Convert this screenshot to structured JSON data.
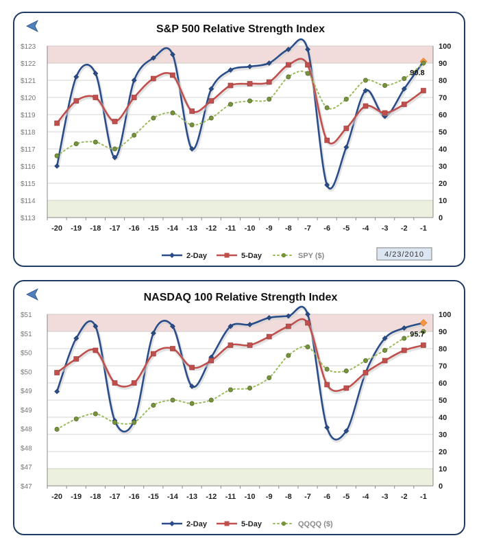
{
  "colors": {
    "two_day": "#2a4d8a",
    "five_day": "#c0504d",
    "price": "#9bbb59",
    "overbought_band": "#f2dcdb",
    "oversold_band": "#ebf1de",
    "gridline": "#c8c8c8",
    "marker_last": "#f79646",
    "date_box_bg": "#dce6f2",
    "back_arrow": "#4f81bd"
  },
  "icons": {
    "back": "back-arrow-icon"
  },
  "chart_data": [
    {
      "type": "line",
      "title": "S&P 500 Relative Strength Index",
      "date_label": "4/23/2010",
      "last_value_label": "90.8",
      "x": [
        -20,
        -19,
        -18,
        -17,
        -16,
        -15,
        -14,
        -13,
        -12,
        -11,
        -10,
        -9,
        -8,
        -7,
        -6,
        -5,
        -4,
        -3,
        -2,
        -1
      ],
      "x_tick_labels": [
        "-20",
        "-19",
        "-18",
        "-17",
        "-16",
        "-15",
        "-14",
        "-13",
        "-12",
        "-11",
        "-10",
        "-9",
        "-8",
        "-7",
        "-6",
        "-5",
        "-4",
        "-3",
        "-2",
        "-1"
      ],
      "series": [
        {
          "name": "2-Day",
          "axis": "right",
          "values": [
            30,
            82,
            84,
            35,
            80,
            93,
            95,
            40,
            75,
            86,
            88,
            90,
            98,
            98,
            19,
            41,
            74,
            59,
            75,
            91
          ]
        },
        {
          "name": "5-Day",
          "axis": "right",
          "values": [
            55,
            68,
            70,
            56,
            70,
            81,
            83,
            62,
            68,
            77,
            78,
            79,
            89,
            89,
            45,
            52,
            65,
            61,
            66,
            74
          ]
        },
        {
          "name": "SPY ($)",
          "axis": "right",
          "values": [
            36,
            43,
            44,
            40,
            48,
            58,
            61,
            54,
            58,
            66,
            68,
            69,
            82,
            84,
            64,
            69,
            80,
            77,
            81,
            90
          ]
        }
      ],
      "left_axis": {
        "ticks": [
          "$113",
          "$114",
          "$115",
          "$116",
          "$117",
          "$118",
          "$119",
          "$120",
          "$121",
          "$122",
          "$123"
        ]
      },
      "right_axis": {
        "ylim": [
          0,
          100
        ],
        "ticks": [
          "0",
          "10",
          "20",
          "30",
          "40",
          "50",
          "60",
          "70",
          "80",
          "90",
          "100"
        ]
      },
      "bands": {
        "overbought": [
          90,
          100
        ],
        "oversold": [
          0,
          10
        ]
      },
      "grid": true,
      "legend_position": "bottom"
    },
    {
      "type": "line",
      "title": "NASDAQ 100 Relative Strength Index",
      "date_label": "",
      "last_value_label": "95.7",
      "x": [
        -20,
        -19,
        -18,
        -17,
        -16,
        -15,
        -14,
        -13,
        -12,
        -11,
        -10,
        -9,
        -8,
        -7,
        -6,
        -5,
        -4,
        -3,
        -2,
        -1
      ],
      "x_tick_labels": [
        "-20",
        "-19",
        "-18",
        "-17",
        "-16",
        "-15",
        "-14",
        "-13",
        "-12",
        "-11",
        "-10",
        "-9",
        "-8",
        "-7",
        "-6",
        "-5",
        "-4",
        "-3",
        "-2",
        "-1"
      ],
      "series": [
        {
          "name": "2-Day",
          "axis": "right",
          "values": [
            55,
            86,
            93,
            38,
            38,
            89,
            93,
            58,
            75,
            93,
            94,
            98,
            99,
            100,
            34,
            32,
            66,
            86,
            92,
            95
          ]
        },
        {
          "name": "5-Day",
          "axis": "right",
          "values": [
            66,
            74,
            79,
            60,
            60,
            77,
            80,
            69,
            73,
            82,
            82,
            87,
            93,
            95,
            59,
            57,
            66,
            73,
            79,
            82
          ]
        },
        {
          "name": "QQQQ ($)",
          "axis": "right",
          "values": [
            33,
            39,
            42,
            37,
            37,
            47,
            50,
            48,
            50,
            56,
            57,
            63,
            76,
            81,
            68,
            67,
            73,
            79,
            86,
            90
          ]
        }
      ],
      "left_axis": {
        "ticks": [
          "$47",
          "$47",
          "$48",
          "$48",
          "$49",
          "$49",
          "$50",
          "$50",
          "$51",
          "$51"
        ]
      },
      "right_axis": {
        "ylim": [
          0,
          100
        ],
        "ticks": [
          "0",
          "10",
          "20",
          "30",
          "40",
          "50",
          "60",
          "70",
          "80",
          "90",
          "100"
        ]
      },
      "bands": {
        "overbought": [
          90,
          100
        ],
        "oversold": [
          0,
          10
        ]
      },
      "grid": true,
      "legend_position": "bottom"
    }
  ]
}
